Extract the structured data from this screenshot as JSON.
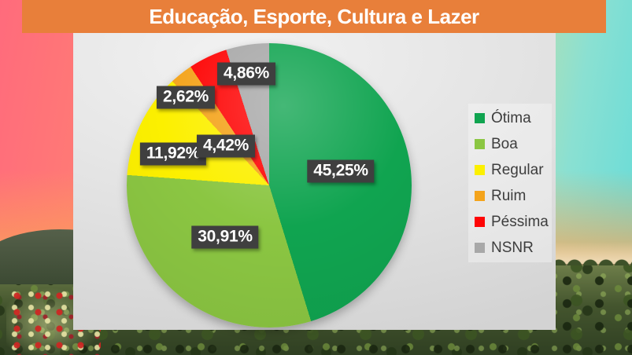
{
  "title": "Educação, Esporte, Cultura e Lazer",
  "colors": {
    "title_bar": "#E87F3A",
    "title_text": "#FFFFFF",
    "chart_bg": "#E0E0E0",
    "data_label_bg": "#3F3F3F",
    "data_label_text": "#FFFFFF",
    "legend_text": "#3D3D3D"
  },
  "chart_data": {
    "type": "pie",
    "title": "Educação, Esporte, Cultura e Lazer",
    "legend_position": "right",
    "start_angle_deg": 0,
    "direction": "clockwise",
    "slices": [
      {
        "label": "Ótima",
        "value": 45.25,
        "display": "45,25%",
        "color": "#10A450"
      },
      {
        "label": "Boa",
        "value": 30.91,
        "display": "30,91%",
        "color": "#8BC642"
      },
      {
        "label": "Regular",
        "value": 11.92,
        "display": "11,92%",
        "color": "#FCF000"
      },
      {
        "label": "Ruim",
        "value": 2.62,
        "display": "2,62%",
        "color": "#F4A41C"
      },
      {
        "label": "Péssima",
        "value": 4.42,
        "display": "4,42%",
        "color": "#FE0505"
      },
      {
        "label": "NSNR",
        "value": 4.86,
        "display": "4,86%",
        "color": "#A8A8A8"
      }
    ]
  }
}
